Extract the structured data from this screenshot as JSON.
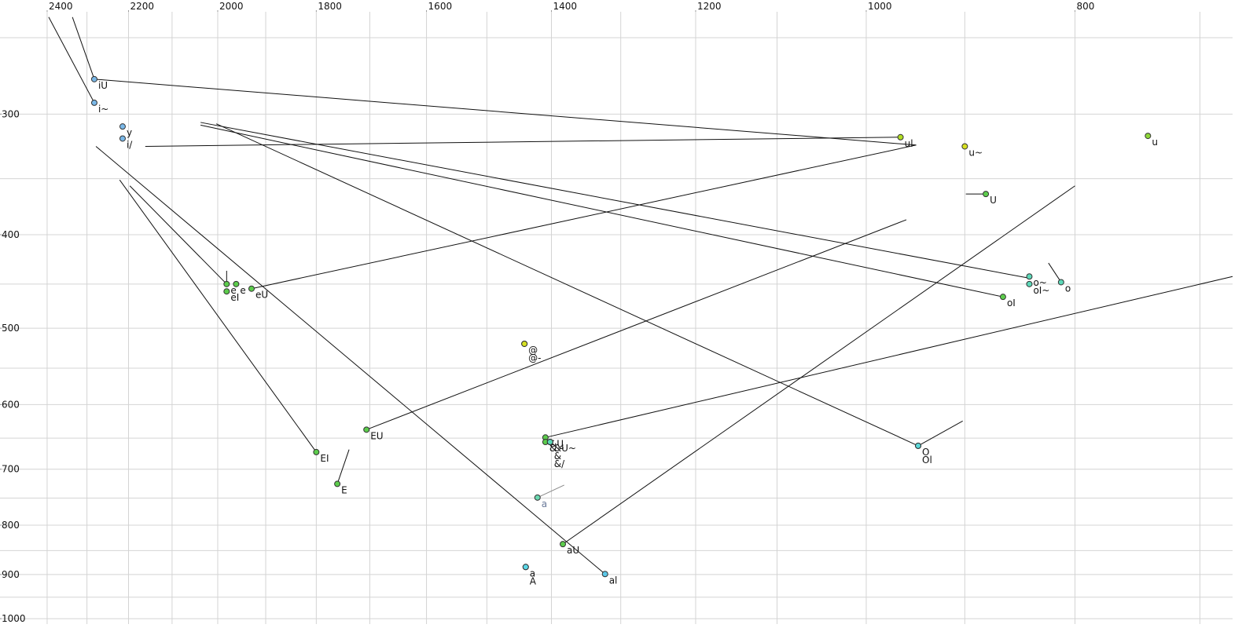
{
  "chart_data": {
    "type": "scatter",
    "xlog": true,
    "ylog": true,
    "x_reversed": true,
    "xlim": [
      2524,
      676
    ],
    "ylim": [
      235,
      1013
    ],
    "xticks": [
      2400,
      2200,
      2000,
      1800,
      1600,
      1400,
      1200,
      1000,
      800
    ],
    "yticks": [
      300,
      400,
      500,
      600,
      700,
      800,
      900,
      1000
    ],
    "xgrid": [
      2400,
      2300,
      2200,
      2100,
      2000,
      1900,
      1800,
      1700,
      1600,
      1500,
      1400,
      1300,
      1200,
      1100,
      1000,
      900,
      800,
      700
    ],
    "ygrid": [
      250,
      300,
      350,
      400,
      450,
      500,
      550,
      600,
      650,
      700,
      750,
      800,
      850,
      900,
      950,
      1000
    ],
    "grid": true,
    "points": [
      {
        "label": "iU",
        "x": 2282,
        "y": 276,
        "color": "#7ab8e8"
      },
      {
        "label": "i~",
        "x": 2282,
        "y": 292,
        "color": "#7ab8e8"
      },
      {
        "label": "y",
        "x": 2214,
        "y": 309,
        "color": "#7ab8e8"
      },
      {
        "label": "i/",
        "x": 2214,
        "y": 318,
        "color": "#7ab8e8"
      },
      {
        "label": "e",
        "x": 1981,
        "y": 450,
        "color": "#5ccc4c"
      },
      {
        "label": "e",
        "x": 1961,
        "y": 450,
        "color": "#5ccc4c"
      },
      {
        "label": "eI",
        "x": 1981,
        "y": 458,
        "color": "#5ccc4c"
      },
      {
        "label": "eU",
        "x": 1929,
        "y": 455,
        "color": "#5ccc4c"
      },
      {
        "label": "ul",
        "x": 964,
        "y": 317,
        "color": "#b0dd22"
      },
      {
        "label": "u~",
        "x": 900,
        "y": 324,
        "color": "#d6e022"
      },
      {
        "label": "u",
        "x": 740,
        "y": 316,
        "color": "#8ed83a"
      },
      {
        "label": "U",
        "x": 880,
        "y": 363,
        "color": "#5ccc4c"
      },
      {
        "label": "o~",
        "x": 840,
        "y": 442,
        "color": "#5cd8b8"
      },
      {
        "label": "oI~",
        "x": 840,
        "y": 450,
        "color": "#5cd8b8"
      },
      {
        "label": "o",
        "x": 812,
        "y": 448,
        "color": "#5cd8b8"
      },
      {
        "label": "oI",
        "x": 864,
        "y": 464,
        "color": "#5ccc4c"
      },
      {
        "label": "@",
        "x": 1441,
        "y": 519,
        "color": "#d6e022"
      },
      {
        "label": "@-",
        "x": 1441,
        "y": 519,
        "color": "#d6e022"
      },
      {
        "label": "EU",
        "x": 1706,
        "y": 637,
        "color": "#5ccc4c"
      },
      {
        "label": "EI",
        "x": 1800,
        "y": 672,
        "color": "#5ccc4c"
      },
      {
        "label": "E",
        "x": 1760,
        "y": 725,
        "color": "#5ccc4c"
      },
      {
        "label": "&U",
        "x": 1409,
        "y": 649,
        "color": "#5ccc4c"
      },
      {
        "label": "&~",
        "x": 1409,
        "y": 656,
        "color": "#5ccc4c"
      },
      {
        "label": "&U~",
        "x": 1402,
        "y": 656,
        "color": "#5cd8b8"
      },
      {
        "label": "&",
        "x": 1402,
        "y": 656,
        "color": "#5cd8b8"
      },
      {
        "label": "&/",
        "x": 1402,
        "y": 656,
        "color": "#5cd8b8"
      },
      {
        "label": "O",
        "x": 946,
        "y": 662,
        "color": "#5cd8d8"
      },
      {
        "label": "Ol",
        "x": 946,
        "y": 662,
        "color": "#5cd8d8"
      },
      {
        "label": "a",
        "x": 1421,
        "y": 749,
        "color": "#6ad8b0",
        "label_color": "#6a7a9a"
      },
      {
        "label": "aU",
        "x": 1383,
        "y": 837,
        "color": "#5ccc4c"
      },
      {
        "label": "a",
        "x": 1439,
        "y": 884,
        "color": "#5cd8e8"
      },
      {
        "label": "A",
        "x": 1439,
        "y": 884,
        "color": "#5cd8e8"
      },
      {
        "label": "al",
        "x": 1322,
        "y": 899,
        "color": "#5cc8e8"
      }
    ],
    "trajectories": [
      {
        "x": [
          2396,
          2282
        ],
        "y": [
          238,
          292
        ]
      },
      {
        "x": [
          2336,
          2282
        ],
        "y": [
          238,
          276
        ]
      },
      {
        "x": [
          2282,
          948
        ],
        "y": [
          276,
          323
        ]
      },
      {
        "x": [
          2161,
          964
        ],
        "y": [
          324,
          317
        ]
      },
      {
        "x": [
          2278,
          1322
        ],
        "y": [
          324,
          899
        ]
      },
      {
        "x": [
          2221,
          1800
        ],
        "y": [
          351,
          672
        ]
      },
      {
        "x": [
          2197,
          1981
        ],
        "y": [
          356,
          450
        ]
      },
      {
        "x": [
          1929,
          948
        ],
        "y": [
          455,
          323
        ]
      },
      {
        "x": [
          2037,
          839
        ],
        "y": [
          306,
          444
        ]
      },
      {
        "x": [
          2037,
          864
        ],
        "y": [
          308,
          464
        ]
      },
      {
        "x": [
          2003,
          946
        ],
        "y": [
          307,
          662
        ]
      },
      {
        "x": [
          1706,
          958
        ],
        "y": [
          637,
          386
        ]
      },
      {
        "x": [
          1383,
          800
        ],
        "y": [
          837,
          356
        ]
      },
      {
        "x": [
          1409,
          676
        ],
        "y": [
          649,
          442
        ]
      },
      {
        "x": [
          946,
          902
        ],
        "y": [
          662,
          624
        ]
      },
      {
        "x": [
          1760,
          1738
        ],
        "y": [
          725,
          668
        ]
      },
      {
        "x": [
          1421,
          1381
        ],
        "y": [
          749,
          727
        ],
        "color": "#888888"
      },
      {
        "x": [
          880,
          899
        ],
        "y": [
          363,
          363
        ]
      },
      {
        "x": [
          812,
          823
        ],
        "y": [
          448,
          428
        ]
      },
      {
        "x": [
          1981,
          1981
        ],
        "y": [
          450,
          436
        ]
      }
    ]
  }
}
